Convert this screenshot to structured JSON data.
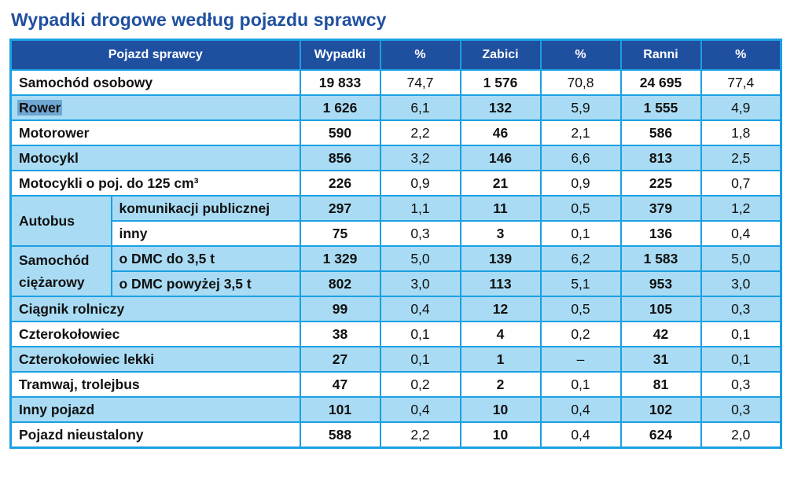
{
  "title": "Wypadki drogowe według pojazdu sprawcy",
  "headers": {
    "vehicle": "Pojazd sprawcy",
    "accidents": "Wypadki",
    "accidents_pct": "%",
    "killed": "Zabici",
    "killed_pct": "%",
    "injured": "Ranni",
    "injured_pct": "%"
  },
  "rows": [
    {
      "name": "Samochód osobowy",
      "wypadki": "19 833",
      "wypadki_pct": "74,7",
      "zabici": "1 576",
      "zabici_pct": "70,8",
      "ranni": "24 695",
      "ranni_pct": "77,4"
    },
    {
      "name": "Rower",
      "wypadki": "1 626",
      "wypadki_pct": "6,1",
      "zabici": "132",
      "zabici_pct": "5,9",
      "ranni": "1 555",
      "ranni_pct": "4,9"
    },
    {
      "name": "Motorower",
      "wypadki": "590",
      "wypadki_pct": "2,2",
      "zabici": "46",
      "zabici_pct": "2,1",
      "ranni": "586",
      "ranni_pct": "1,8"
    },
    {
      "name": "Motocykl",
      "wypadki": "856",
      "wypadki_pct": "3,2",
      "zabici": "146",
      "zabici_pct": "6,6",
      "ranni": "813",
      "ranni_pct": "2,5"
    },
    {
      "name": "Motocykli o poj. do 125 cm³",
      "wypadki": "226",
      "wypadki_pct": "0,9",
      "zabici": "21",
      "zabici_pct": "0,9",
      "ranni": "225",
      "ranni_pct": "0,7"
    },
    {
      "group": "Autobus",
      "name": "komunikacji publicznej",
      "wypadki": "297",
      "wypadki_pct": "1,1",
      "zabici": "11",
      "zabici_pct": "0,5",
      "ranni": "379",
      "ranni_pct": "1,2"
    },
    {
      "name": "inny",
      "wypadki": "75",
      "wypadki_pct": "0,3",
      "zabici": "3",
      "zabici_pct": "0,1",
      "ranni": "136",
      "ranni_pct": "0,4"
    },
    {
      "group": "Samochód ciężarowy",
      "name": "o DMC do 3,5 t",
      "wypadki": "1 329",
      "wypadki_pct": "5,0",
      "zabici": "139",
      "zabici_pct": "6,2",
      "ranni": "1 583",
      "ranni_pct": "5,0"
    },
    {
      "name": "o DMC powyżej 3,5 t",
      "wypadki": "802",
      "wypadki_pct": "3,0",
      "zabici": "113",
      "zabici_pct": "5,1",
      "ranni": "953",
      "ranni_pct": "3,0"
    },
    {
      "name": "Ciągnik rolniczy",
      "wypadki": "99",
      "wypadki_pct": "0,4",
      "zabici": "12",
      "zabici_pct": "0,5",
      "ranni": "105",
      "ranni_pct": "0,3"
    },
    {
      "name": "Czterokołowiec",
      "wypadki": "38",
      "wypadki_pct": "0,1",
      "zabici": "4",
      "zabici_pct": "0,2",
      "ranni": "42",
      "ranni_pct": "0,1"
    },
    {
      "name": "Czterokołowiec lekki",
      "wypadki": "27",
      "wypadki_pct": "0,1",
      "zabici": "1",
      "zabici_pct": "–",
      "ranni": "31",
      "ranni_pct": "0,1"
    },
    {
      "name": "Tramwaj, trolejbus",
      "wypadki": "47",
      "wypadki_pct": "0,2",
      "zabici": "2",
      "zabici_pct": "0,1",
      "ranni": "81",
      "ranni_pct": "0,3"
    },
    {
      "name": "Inny pojazd",
      "wypadki": "101",
      "wypadki_pct": "0,4",
      "zabici": "10",
      "zabici_pct": "0,4",
      "ranni": "102",
      "ranni_pct": "0,3"
    },
    {
      "name": "Pojazd nieustalony",
      "wypadki": "588",
      "wypadki_pct": "2,2",
      "zabici": "10",
      "zabici_pct": "0,4",
      "ranni": "624",
      "ranni_pct": "2,0"
    }
  ],
  "colors": {
    "header_bg": "#1f4f9f",
    "alt_row": "#a9dcf4",
    "border": "#1ba0e2",
    "title": "#1f4f9f",
    "selection": "#6fa7d3"
  }
}
